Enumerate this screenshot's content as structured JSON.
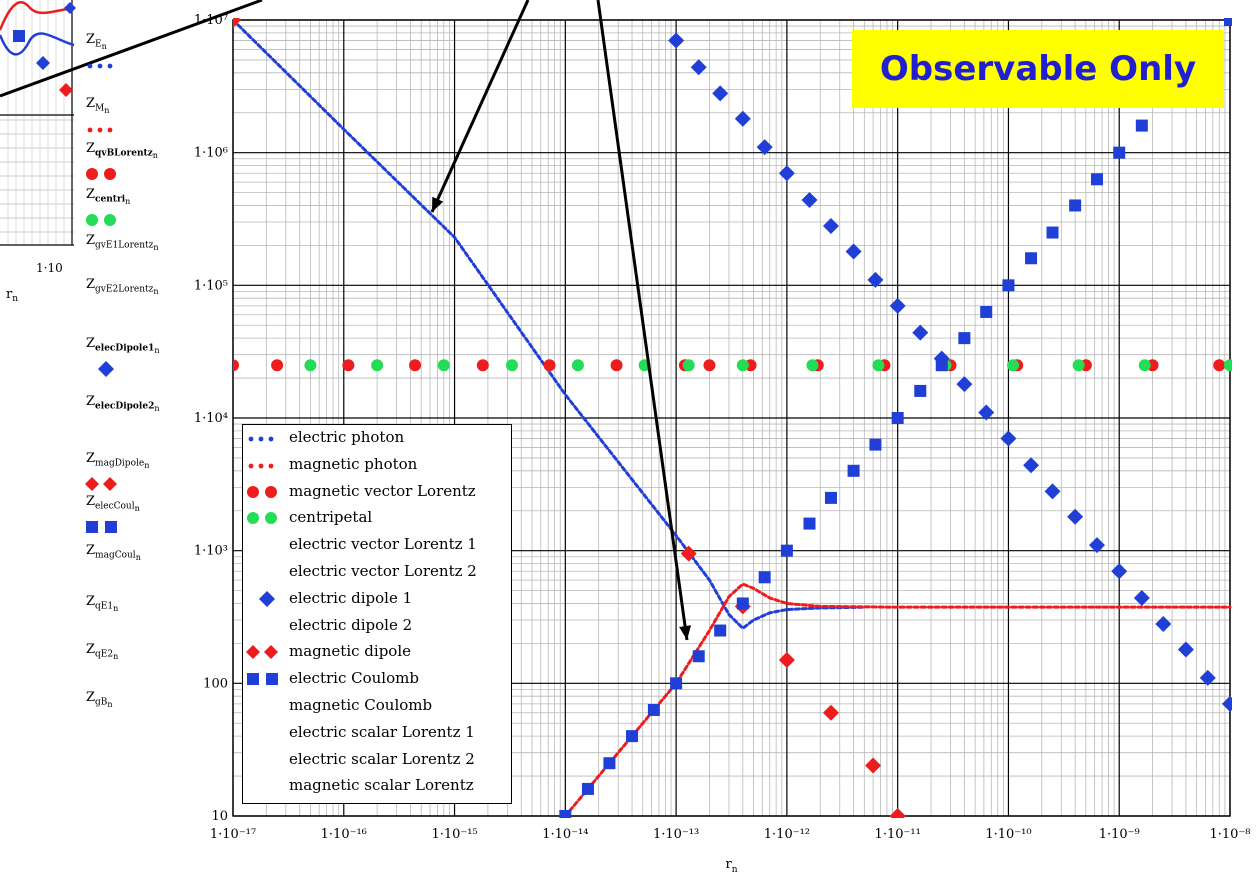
{
  "badge_text": "Observable Only",
  "ytick_labels": [
    "10",
    "100",
    "1·10³",
    "1·10⁴",
    "1·10⁵",
    "1·10⁶",
    "1·10⁷"
  ],
  "xtick_labels": [
    "1·10⁻¹⁷",
    "1·10⁻¹⁶",
    "1·10⁻¹⁵",
    "1·10⁻¹⁴",
    "1·10⁻¹³",
    "1·10⁻¹²",
    "1·10⁻¹¹",
    "1·10⁻¹⁰",
    "1·10⁻⁹",
    "1·10⁻⁸"
  ],
  "xlabel_main": "r",
  "xlabel_sub": "n",
  "inset": {
    "xtick": "1·10",
    "xlabel_main": "r",
    "xlabel_sub": "n"
  },
  "colors": {
    "blue": "#1f3fd6",
    "red": "#ee1c1c",
    "green": "#22dd55"
  },
  "y_labels": [
    {
      "main": "Z",
      "sub": "E",
      "sub2": "n",
      "marker": "dot-blue"
    },
    {
      "main": "Z",
      "sub": "M",
      "sub2": "n",
      "marker": "dot-red"
    },
    {
      "main": "Z",
      "sub": "qvBLorentz",
      "sub2": "n",
      "marker": "circle-red"
    },
    {
      "main": "Z",
      "sub": "centri",
      "sub2": "n",
      "marker": "circle-green"
    },
    {
      "main": "Z",
      "sub": "gvE1Lorentz",
      "sub2": "n",
      "marker": "none"
    },
    {
      "main": "Z",
      "sub": "gvE2Lorentz",
      "sub2": "n",
      "marker": "none"
    },
    {
      "main": "Z",
      "sub": "elecDipole1",
      "sub2": "n",
      "marker": "diamond-blue"
    },
    {
      "main": "Z",
      "sub": "elecDipole2",
      "sub2": "n",
      "marker": "none"
    },
    {
      "main": "Z",
      "sub": "magDipole",
      "sub2": "n",
      "marker": "diamond-red"
    },
    {
      "main": "Z",
      "sub": "elecCoul",
      "sub2": "n",
      "marker": "square-blue"
    },
    {
      "main": "Z",
      "sub": "magCoul",
      "sub2": "n",
      "marker": "none"
    },
    {
      "main": "Z",
      "sub": "qE1",
      "sub2": "n",
      "marker": "none"
    },
    {
      "main": "Z",
      "sub": "qE2",
      "sub2": "n",
      "marker": "none"
    },
    {
      "main": "Z",
      "sub": "gB",
      "sub2": "n",
      "marker": "none"
    }
  ],
  "legend": [
    {
      "label": "electric photon",
      "marker": "dot-blue"
    },
    {
      "label": "magnetic photon",
      "marker": "dot-red"
    },
    {
      "label": "magnetic vector Lorentz",
      "marker": "circle-red"
    },
    {
      "label": "centripetal",
      "marker": "circle-green"
    },
    {
      "label": "electric vector Lorentz 1",
      "marker": "none"
    },
    {
      "label": "electric vector Lorentz 2",
      "marker": "none"
    },
    {
      "label": "electric dipole 1",
      "marker": "diamond-blue"
    },
    {
      "label": "electric dipole 2",
      "marker": "none"
    },
    {
      "label": "magnetic dipole",
      "marker": "diamond-red"
    },
    {
      "label": "electric Coulomb",
      "marker": "square-blue"
    },
    {
      "label": "magnetic Coulomb",
      "marker": "none"
    },
    {
      "label": "electric scalar Lorentz 1",
      "marker": "none"
    },
    {
      "label": "electric scalar Lorentz 2",
      "marker": "none"
    },
    {
      "label": "magnetic scalar Lorentz",
      "marker": "none"
    }
  ],
  "chart_data": {
    "type": "scatter",
    "x_scale": "log",
    "y_scale": "log",
    "xlim": [
      1e-17,
      1e-08
    ],
    "ylim": [
      10,
      10000000.0
    ],
    "grid": true,
    "legend_position": "bottom-left",
    "series": [
      {
        "name": "electric photon",
        "style": "dotted-line",
        "color": "#1f3fd6",
        "x": [
          1e-17,
          1e-16,
          1e-15,
          1e-14,
          1e-13,
          2e-13,
          3e-13,
          4e-13,
          5e-13,
          7e-13,
          1e-12,
          2e-12,
          5e-12
        ],
        "y": [
          10000000.0,
          1500000.0,
          230000.0,
          15000.0,
          1300.0,
          600.0,
          330.0,
          260.0,
          300.0,
          340.0,
          360.0,
          370.0,
          375.0
        ]
      },
      {
        "name": "magnetic photon",
        "style": "dotted-line",
        "color": "#ee1c1c",
        "x": [
          1e-14,
          3e-14,
          1e-13,
          2e-13,
          3e-13,
          4e-13,
          5e-13,
          7e-13,
          1e-12,
          2e-12,
          1e-11,
          1e-10,
          1e-09,
          1e-08
        ],
        "y": [
          10,
          30,
          100,
          250,
          450,
          560,
          520,
          440,
          400,
          380,
          375,
          375,
          375,
          375
        ]
      },
      {
        "name": "magnetic vector Lorentz",
        "style": "circles",
        "color": "#ee1c1c",
        "x": [
          1e-17,
          2.5e-17,
          1.1e-16,
          4.4e-16,
          1.8e-15,
          7.2e-15,
          2.9e-14,
          1.2e-13,
          2e-13,
          4.7e-13,
          1.9e-12,
          7.6e-12,
          3e-11,
          1.2e-10,
          5e-10,
          2e-09,
          8e-09
        ],
        "y": [
          25000.0,
          25000.0,
          25000.0,
          25000.0,
          25000.0,
          25000.0,
          25000.0,
          25000.0,
          25000.0,
          25000.0,
          25000.0,
          25000.0,
          25000.0,
          25000.0,
          25000.0,
          25000.0,
          25000.0
        ]
      },
      {
        "name": "centripetal",
        "style": "circles",
        "color": "#22dd55",
        "x": [
          5e-17,
          2e-16,
          8e-16,
          3.3e-15,
          1.3e-14,
          5.2e-14,
          1.3e-13,
          4e-13,
          1.7e-12,
          6.7e-12,
          2.7e-11,
          1.1e-10,
          4.3e-10,
          1.7e-09,
          1e-08
        ],
        "y": [
          25000.0,
          25000.0,
          25000.0,
          25000.0,
          25000.0,
          25000.0,
          25000.0,
          25000.0,
          25000.0,
          25000.0,
          25000.0,
          25000.0,
          25000.0,
          25000.0,
          25000.0
        ]
      },
      {
        "name": "electric dipole 1",
        "style": "diamonds",
        "color": "#1f3fd6",
        "x": [
          1e-13,
          1.6e-13,
          2.5e-13,
          4e-13,
          6.3e-13,
          1e-12,
          1.6e-12,
          2.5e-12,
          4e-12,
          6.3e-12,
          1e-11,
          1.6e-11,
          2.5e-11,
          4e-11,
          6.3e-11,
          1e-10,
          1.6e-10,
          2.5e-10,
          4e-10,
          6.3e-10,
          1e-09,
          1.6e-09,
          2.5e-09,
          4e-09,
          6.3e-09,
          1e-08
        ],
        "y": [
          7000000.0,
          4400000.0,
          2800000.0,
          1800000.0,
          1100000.0,
          700000.0,
          440000.0,
          280000.0,
          180000.0,
          110000.0,
          70000.0,
          44000.0,
          28000.0,
          18000.0,
          11000.0,
          7000.0,
          4400.0,
          2800.0,
          1800.0,
          1100.0,
          700.0,
          440.0,
          280.0,
          180.0,
          110.0,
          70
        ]
      },
      {
        "name": "magnetic dipole",
        "style": "diamonds",
        "color": "#ee1c1c",
        "x": [
          1e-17,
          1.3e-13,
          4e-13,
          1e-12,
          2.5e-12,
          6e-12,
          1e-11
        ],
        "y": [
          10000000.0,
          950.0,
          380.0,
          150.0,
          60,
          24,
          10
        ]
      },
      {
        "name": "electric Coulomb",
        "style": "squares",
        "color": "#1f3fd6",
        "x": [
          1e-14,
          1.6e-14,
          2.5e-14,
          4e-14,
          6.3e-14,
          1e-13,
          1.6e-13,
          2.5e-13,
          4e-13,
          6.3e-13,
          1e-12,
          1.6e-12,
          2.5e-12,
          4e-12,
          6.3e-12,
          1e-11,
          1.6e-11,
          2.5e-11,
          4e-11,
          6.3e-11,
          1e-10,
          1.6e-10,
          2.5e-10,
          4e-10,
          6.3e-10,
          1e-09,
          1.6e-09,
          2.5e-09,
          4e-09,
          6.3e-09,
          1e-08
        ],
        "y": [
          10,
          16,
          25,
          40,
          63,
          100,
          160,
          250,
          400,
          630,
          1000,
          1600,
          2500,
          4000,
          6300,
          10000.0,
          16000.0,
          25000.0,
          40000.0,
          63000.0,
          100000.0,
          160000.0,
          250000.0,
          400000.0,
          630000.0,
          1000000.0,
          1600000.0,
          2500000.0,
          4000000.0,
          6300000.0,
          10000000.0
        ]
      }
    ]
  }
}
